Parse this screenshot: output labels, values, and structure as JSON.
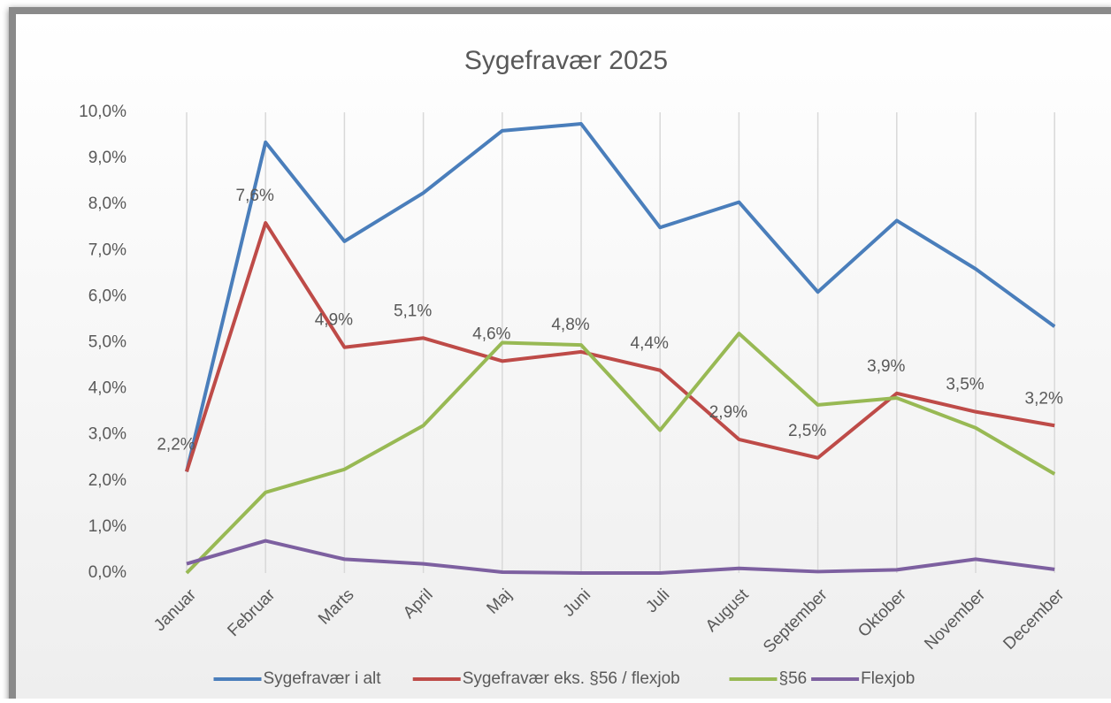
{
  "chart_data": {
    "type": "line",
    "title": "Sygefravær 2025",
    "categories": [
      "Januar",
      "Februar",
      "Marts",
      "April",
      "Maj",
      "Juni",
      "Juli",
      "August",
      "September",
      "Oktober",
      "November",
      "December"
    ],
    "series": [
      {
        "name": "Sygefravær i alt",
        "color": "#4a7ebb",
        "values": [
          2.2,
          9.35,
          7.2,
          8.25,
          9.6,
          9.75,
          7.5,
          8.05,
          6.1,
          7.65,
          6.6,
          5.35
        ]
      },
      {
        "name": "Sygefravær eks. §56 / flexjob",
        "color": "#be4b48",
        "values": [
          2.2,
          7.6,
          4.9,
          5.1,
          4.6,
          4.8,
          4.4,
          2.9,
          2.5,
          3.9,
          3.5,
          3.2
        ],
        "value_labels": [
          "2,2%",
          "7,6%",
          "4,9%",
          "5,1%",
          "4,6%",
          "4,8%",
          "4,4%",
          "2,9%",
          "2,5%",
          "3,9%",
          "3,5%",
          "3,2%"
        ]
      },
      {
        "name": "§56",
        "color": "#98b954",
        "values": [
          0,
          1.75,
          2.25,
          3.2,
          5.0,
          4.95,
          3.1,
          5.2,
          3.65,
          3.8,
          3.15,
          2.15
        ]
      },
      {
        "name": "Flexjob",
        "color": "#7d60a0",
        "values": [
          0.2,
          0.7,
          0.3,
          0.2,
          0.02,
          0,
          0,
          0.1,
          0.03,
          0.07,
          0.3,
          0.08
        ]
      }
    ],
    "ylim": [
      0,
      10
    ],
    "yticks": [
      {
        "value": 0,
        "label": "0,0%"
      },
      {
        "value": 1,
        "label": "1,0%"
      },
      {
        "value": 2,
        "label": "2,0%"
      },
      {
        "value": 3,
        "label": "3,0%"
      },
      {
        "value": 4,
        "label": "4,0%"
      },
      {
        "value": 5,
        "label": "5,0%"
      },
      {
        "value": 6,
        "label": "6,0%"
      },
      {
        "value": 7,
        "label": "7,0%"
      },
      {
        "value": 8,
        "label": "8,0%"
      },
      {
        "value": 9,
        "label": "9,0%"
      },
      {
        "value": 10,
        "label": "10,0%"
      }
    ],
    "grid": "x",
    "legend": "bottom"
  }
}
